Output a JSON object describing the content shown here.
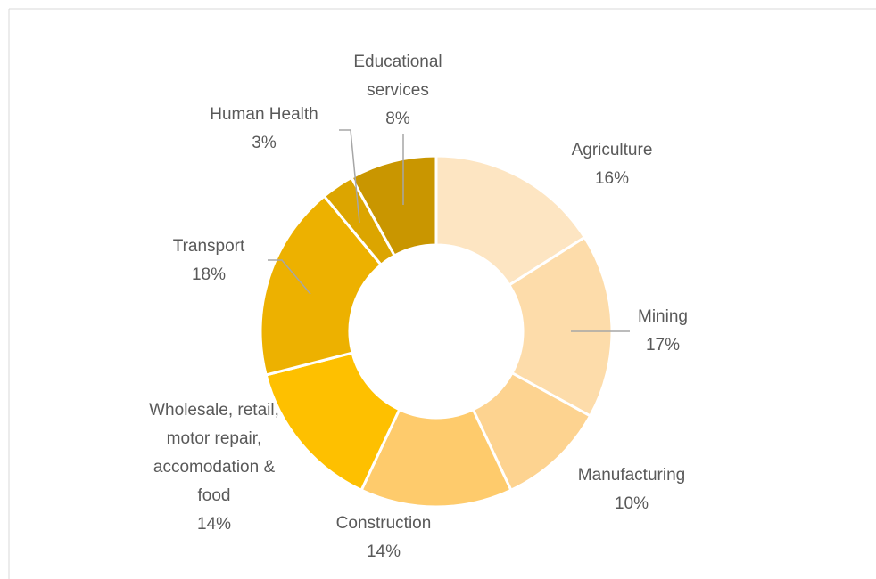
{
  "chart_data": {
    "type": "donut",
    "categories": [
      "Agriculture",
      "Mining",
      "Manufacturing",
      "Construction",
      "Wholesale, retail, motor repair, accomodation & food",
      "Transport",
      "Human Health",
      "Educational services"
    ],
    "values": [
      16,
      17,
      10,
      14,
      14,
      18,
      3,
      8
    ],
    "value_labels": [
      "16%",
      "17%",
      "10%",
      "14%",
      "14%",
      "18%",
      "3%",
      "8%"
    ],
    "colors": [
      "#fde5c2",
      "#fddcaa",
      "#fdd390",
      "#fecb6c",
      "#fec000",
      "#edb100",
      "#dca500",
      "#c99600"
    ]
  }
}
